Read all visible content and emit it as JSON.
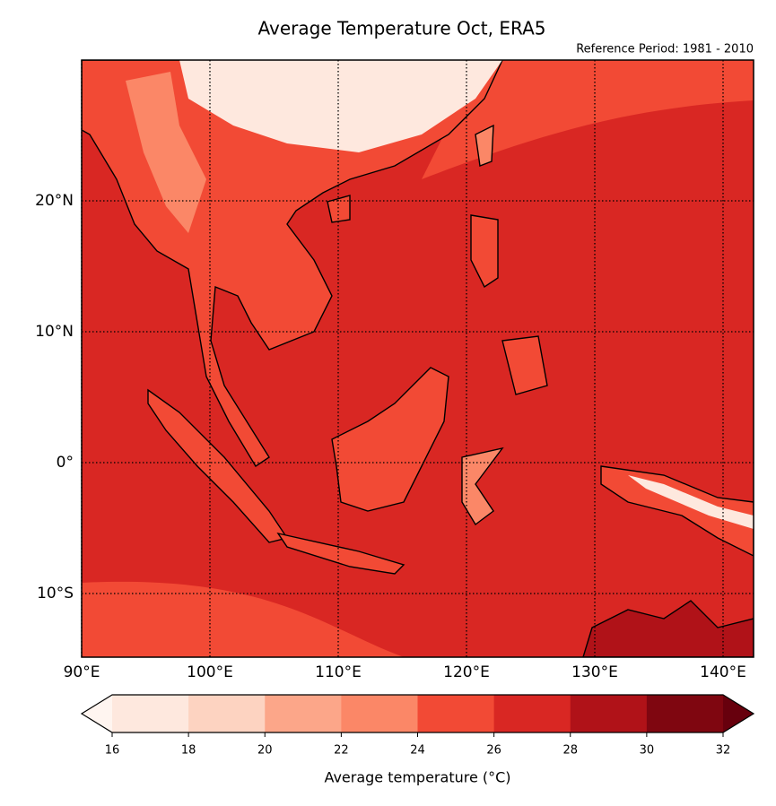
{
  "title": "Average Temperature Oct, ERA5",
  "subtitle": "Reference Period: 1981 - 2010",
  "map": {
    "lat_ticks": [
      {
        "value": 20,
        "label": "20°N"
      },
      {
        "value": 10,
        "label": "10°N"
      },
      {
        "value": 0,
        "label": "0°"
      },
      {
        "value": -10,
        "label": "10°S"
      }
    ],
    "lon_ticks": [
      {
        "value": 90,
        "label": "90°E"
      },
      {
        "value": 100,
        "label": "100°E"
      },
      {
        "value": 110,
        "label": "110°E"
      },
      {
        "value": 120,
        "label": "120°E"
      },
      {
        "value": 130,
        "label": "130°E"
      },
      {
        "value": 140,
        "label": "140°E"
      }
    ],
    "grid": true
  },
  "colorbar": {
    "label": "Average temperature (°C)",
    "ticks": [
      16,
      18,
      20,
      22,
      24,
      26,
      28,
      30,
      32
    ],
    "colors": [
      "#fee8de",
      "#fdd3c1",
      "#fca689",
      "#fb8767",
      "#f24a35",
      "#d92723",
      "#b01218",
      "#7f0610"
    ],
    "under_color": "#fff5f0",
    "over_color": "#67000d"
  }
}
